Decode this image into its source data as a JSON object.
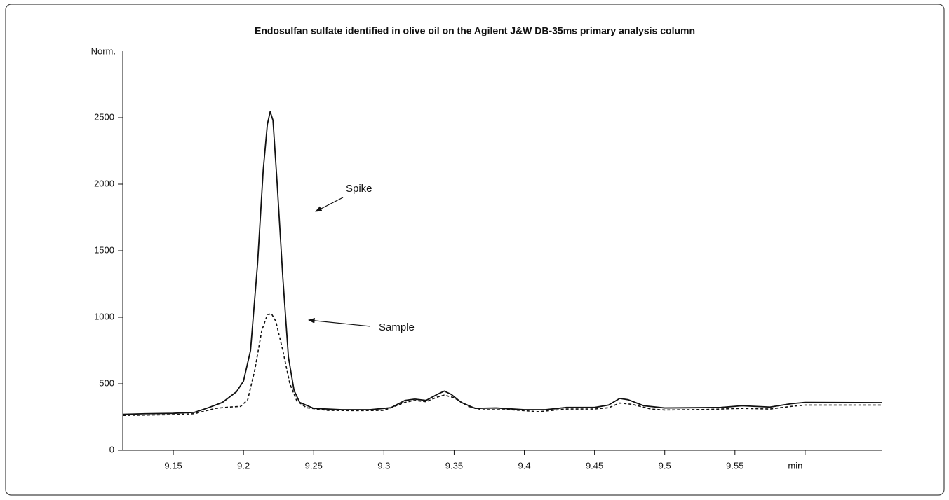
{
  "chart_data": {
    "type": "line",
    "title": "Endosulfan sulfate identified in olive oil on the Agilent J&W DB-35ms primary analysis column",
    "y_label": "Norm.",
    "xlim": [
      9.114,
      9.655
    ],
    "ylim": [
      0,
      3000
    ],
    "xticks": [
      9.15,
      9.2,
      9.25,
      9.3,
      9.35,
      9.4,
      9.45,
      9.5,
      9.55,
      {
        "value": 9.6,
        "label": "min"
      }
    ],
    "yticks": [
      0,
      500,
      1000,
      1500,
      2000,
      2500
    ],
    "series": [
      {
        "name": "Spike",
        "color": "#111111",
        "dashed": false,
        "x": [
          9.114,
          9.13,
          9.15,
          9.165,
          9.175,
          9.185,
          9.195,
          9.2,
          9.205,
          9.21,
          9.214,
          9.217,
          9.219,
          9.221,
          9.224,
          9.228,
          9.232,
          9.236,
          9.24,
          9.25,
          9.27,
          9.29,
          9.305,
          9.315,
          9.322,
          9.33,
          9.338,
          9.343,
          9.348,
          9.355,
          9.365,
          9.38,
          9.4,
          9.415,
          9.43,
          9.45,
          9.46,
          9.468,
          9.474,
          9.485,
          9.5,
          9.52,
          9.54,
          9.555,
          9.575,
          9.59,
          9.6,
          9.655
        ],
        "values": [
          270,
          275,
          278,
          285,
          320,
          360,
          440,
          520,
          750,
          1400,
          2100,
          2450,
          2545,
          2480,
          2000,
          1300,
          700,
          450,
          360,
          315,
          305,
          305,
          320,
          375,
          385,
          375,
          420,
          445,
          420,
          360,
          315,
          318,
          305,
          305,
          322,
          322,
          340,
          390,
          380,
          335,
          318,
          320,
          322,
          335,
          325,
          350,
          360,
          358
        ]
      },
      {
        "name": "Sample",
        "color": "#111111",
        "dashed": true,
        "x": [
          9.114,
          9.15,
          9.165,
          9.18,
          9.19,
          9.198,
          9.203,
          9.208,
          9.213,
          9.217,
          9.22,
          9.223,
          9.228,
          9.233,
          9.238,
          9.245,
          9.26,
          9.28,
          9.3,
          9.315,
          9.322,
          9.33,
          9.338,
          9.343,
          9.35,
          9.36,
          9.37,
          9.39,
          9.41,
          9.43,
          9.45,
          9.46,
          9.468,
          9.477,
          9.49,
          9.5,
          9.53,
          9.555,
          9.575,
          9.59,
          9.6,
          9.655
        ],
        "values": [
          262,
          268,
          275,
          315,
          325,
          330,
          380,
          600,
          900,
          1020,
          1025,
          970,
          750,
          500,
          370,
          320,
          300,
          298,
          300,
          360,
          375,
          365,
          400,
          415,
          395,
          330,
          305,
          305,
          290,
          310,
          310,
          320,
          355,
          345,
          310,
          303,
          307,
          315,
          310,
          330,
          340,
          340
        ]
      }
    ]
  }
}
